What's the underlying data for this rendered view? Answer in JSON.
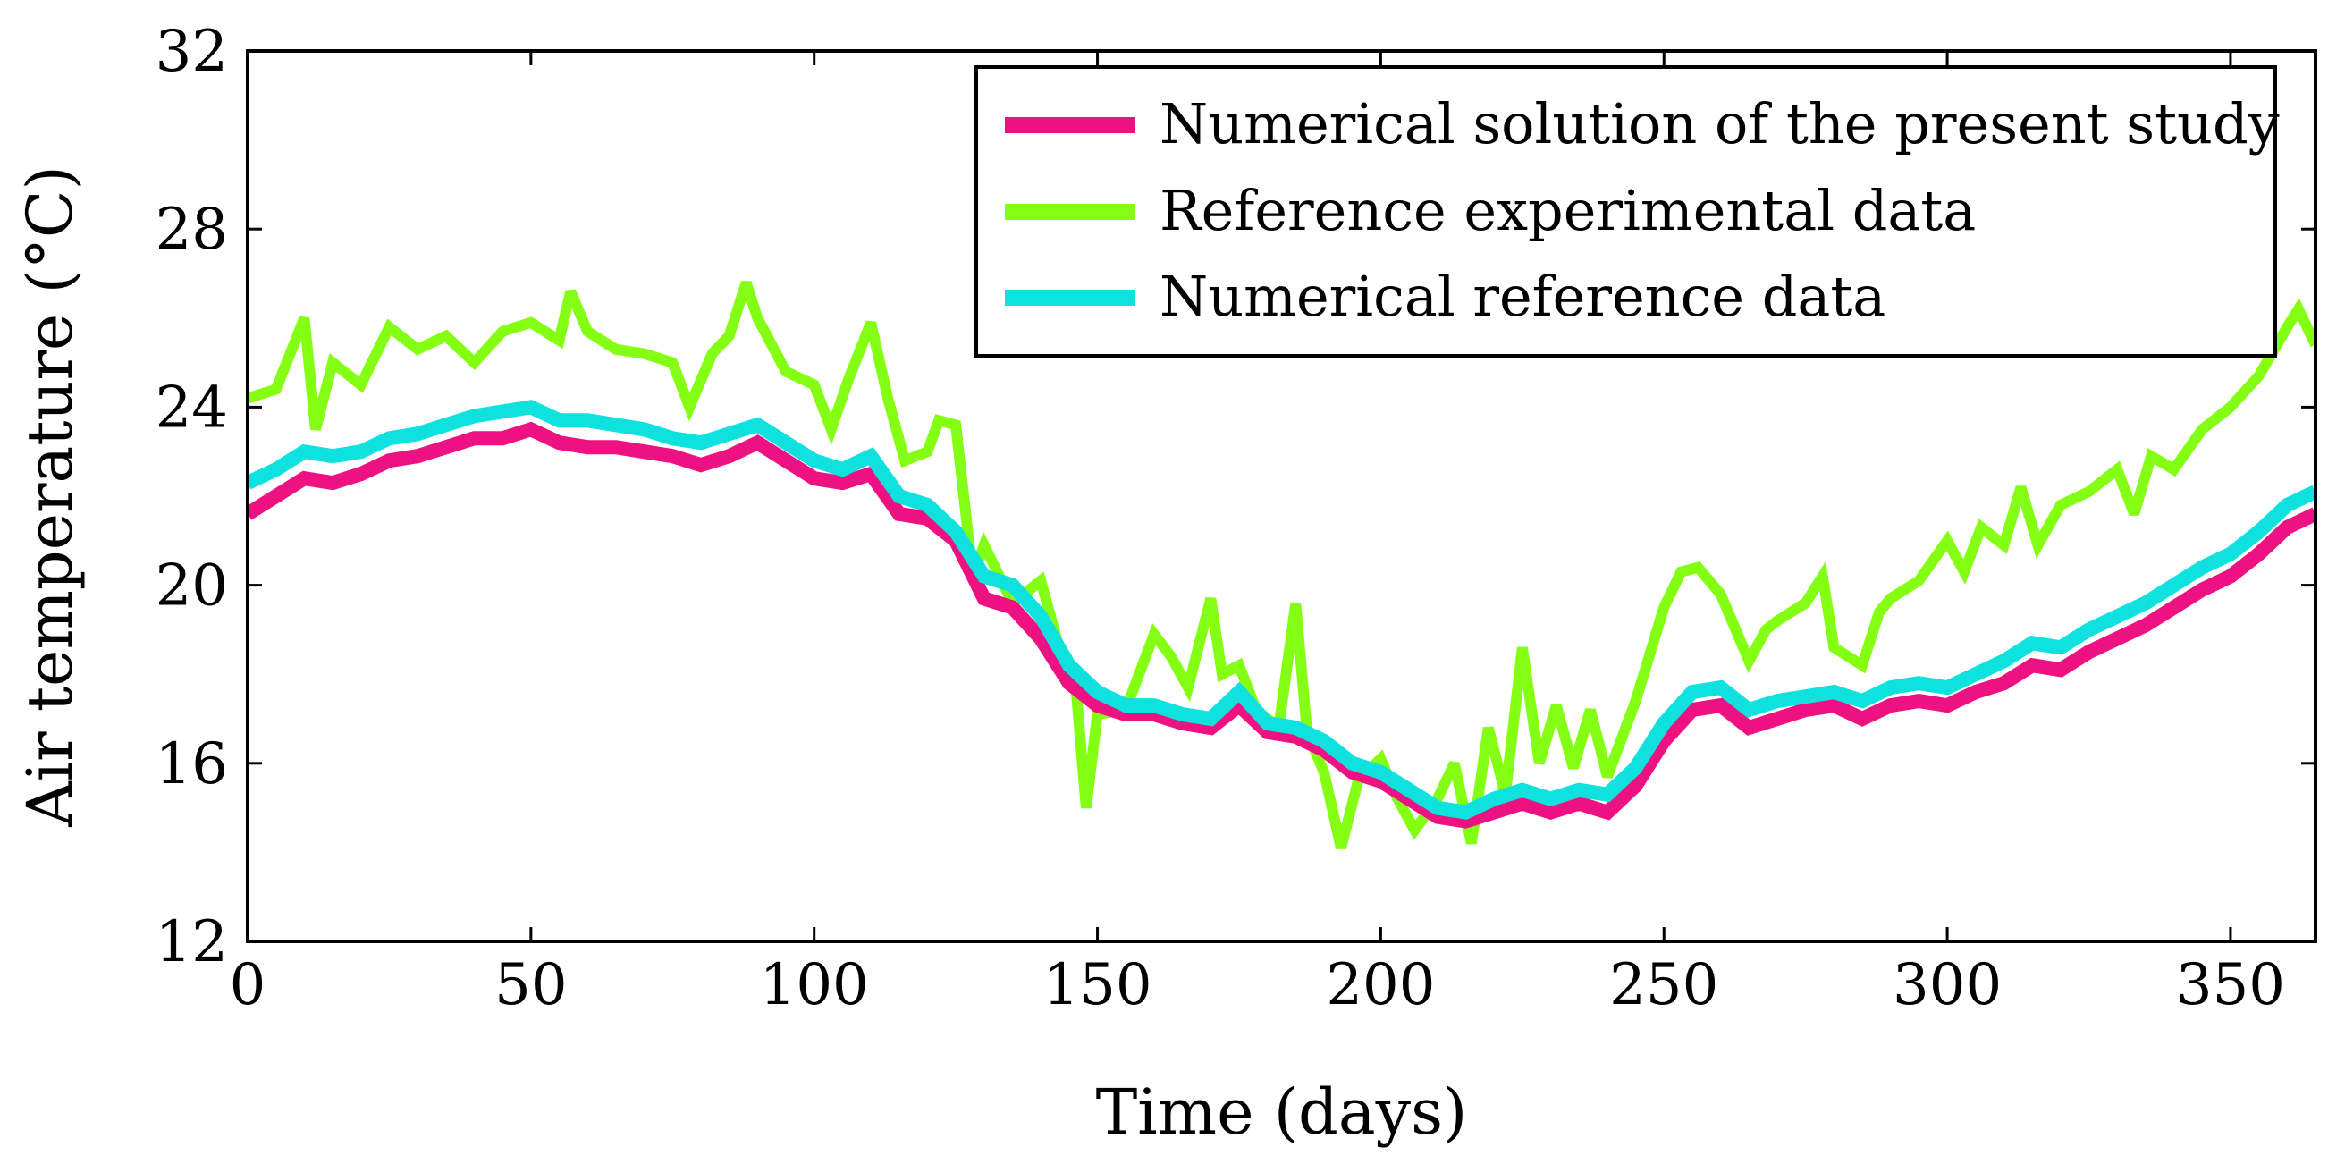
{
  "chart_data": {
    "type": "line",
    "title": "",
    "xlabel": "Time (days)",
    "ylabel": "Air temperature (°C)",
    "xlim": [
      0,
      365
    ],
    "ylim": [
      12,
      32
    ],
    "xticks": [
      0,
      50,
      100,
      150,
      200,
      250,
      300,
      350
    ],
    "yticks": [
      12,
      16,
      20,
      24,
      28,
      32
    ],
    "xtick_labels": [
      "0",
      "50",
      "100",
      "150",
      "200",
      "250",
      "300",
      "350"
    ],
    "ytick_labels": [
      "12",
      "16",
      "20",
      "24",
      "28",
      "32"
    ],
    "grid": false,
    "legend_position": "top-right",
    "series": [
      {
        "name": "Numerical solution of the present study",
        "color": "#ee1182",
        "x": [
          0,
          5,
          10,
          15,
          20,
          25,
          30,
          35,
          40,
          45,
          50,
          55,
          60,
          65,
          70,
          75,
          80,
          85,
          90,
          95,
          100,
          105,
          110,
          115,
          120,
          125,
          130,
          135,
          140,
          145,
          150,
          155,
          160,
          165,
          170,
          175,
          180,
          185,
          190,
          195,
          200,
          205,
          210,
          215,
          220,
          225,
          230,
          235,
          240,
          245,
          250,
          255,
          260,
          265,
          270,
          275,
          280,
          285,
          290,
          295,
          300,
          305,
          310,
          315,
          320,
          325,
          330,
          335,
          340,
          345,
          350,
          355,
          360,
          365
        ],
        "y": [
          21.6,
          22.0,
          22.4,
          22.3,
          22.5,
          22.8,
          22.9,
          23.1,
          23.3,
          23.3,
          23.5,
          23.2,
          23.1,
          23.1,
          23.0,
          22.9,
          22.7,
          22.9,
          23.2,
          22.8,
          22.4,
          22.3,
          22.5,
          21.6,
          21.5,
          21.0,
          19.7,
          19.5,
          18.8,
          17.8,
          17.3,
          17.1,
          17.1,
          16.9,
          16.8,
          17.3,
          16.7,
          16.6,
          16.3,
          15.8,
          15.6,
          15.2,
          14.8,
          14.7,
          14.9,
          15.1,
          14.9,
          15.1,
          14.9,
          15.5,
          16.5,
          17.2,
          17.3,
          16.8,
          17.0,
          17.2,
          17.3,
          17.0,
          17.3,
          17.4,
          17.3,
          17.6,
          17.8,
          18.2,
          18.1,
          18.5,
          18.8,
          19.1,
          19.5,
          19.9,
          20.2,
          20.7,
          21.3,
          21.6
        ]
      },
      {
        "name": "Reference experimental data",
        "color": "#84ff14",
        "x": [
          0,
          5,
          10,
          12,
          15,
          20,
          25,
          30,
          35,
          40,
          45,
          50,
          55,
          57,
          60,
          65,
          70,
          75,
          78,
          82,
          85,
          88,
          90,
          95,
          100,
          103,
          106,
          110,
          113,
          116,
          120,
          122,
          125,
          128,
          130,
          135,
          140,
          143,
          146,
          148,
          150,
          155,
          160,
          163,
          166,
          170,
          172,
          175,
          178,
          182,
          185,
          187,
          190,
          193,
          196,
          200,
          203,
          206,
          210,
          213,
          216,
          219,
          222,
          225,
          228,
          231,
          234,
          237,
          240,
          245,
          250,
          253,
          256,
          260,
          265,
          268,
          270,
          275,
          278,
          280,
          285,
          288,
          290,
          295,
          300,
          303,
          306,
          310,
          313,
          316,
          320,
          325,
          330,
          333,
          336,
          340,
          345,
          350,
          355,
          360,
          362,
          365
        ],
        "y": [
          24.2,
          24.4,
          26.0,
          23.5,
          25.0,
          24.5,
          25.8,
          25.3,
          25.6,
          25.0,
          25.7,
          25.9,
          25.5,
          26.6,
          25.7,
          25.3,
          25.2,
          25.0,
          24.0,
          25.2,
          25.6,
          26.8,
          26.0,
          24.8,
          24.5,
          23.5,
          24.6,
          25.9,
          24.2,
          22.8,
          23.0,
          23.7,
          23.6,
          20.2,
          20.9,
          19.6,
          20.1,
          18.7,
          18.0,
          15.0,
          17.1,
          17.2,
          18.9,
          18.4,
          17.7,
          19.7,
          18.0,
          18.2,
          17.2,
          16.8,
          19.6,
          16.7,
          15.8,
          14.1,
          15.6,
          16.1,
          15.2,
          14.5,
          15.2,
          16.0,
          14.2,
          16.8,
          15.3,
          18.6,
          16.0,
          17.3,
          15.9,
          17.2,
          15.7,
          17.4,
          19.5,
          20.3,
          20.4,
          19.8,
          18.3,
          19.0,
          19.2,
          19.6,
          20.2,
          18.6,
          18.2,
          19.4,
          19.7,
          20.1,
          21.0,
          20.3,
          21.3,
          20.9,
          22.2,
          20.9,
          21.8,
          22.1,
          22.6,
          21.6,
          22.9,
          22.6,
          23.5,
          24.0,
          24.7,
          25.8,
          26.2,
          25.4
        ]
      },
      {
        "name": "Numerical reference data",
        "color": "#0fe2de",
        "x": [
          0,
          5,
          10,
          15,
          20,
          25,
          30,
          35,
          40,
          45,
          50,
          55,
          60,
          65,
          70,
          75,
          80,
          85,
          90,
          95,
          100,
          105,
          110,
          115,
          120,
          125,
          130,
          135,
          140,
          145,
          150,
          155,
          160,
          165,
          170,
          175,
          180,
          185,
          190,
          195,
          200,
          205,
          210,
          215,
          220,
          225,
          230,
          235,
          240,
          245,
          250,
          255,
          260,
          265,
          270,
          275,
          280,
          285,
          290,
          295,
          300,
          305,
          310,
          315,
          320,
          325,
          330,
          335,
          340,
          345,
          350,
          355,
          360,
          365
        ],
        "y": [
          22.3,
          22.6,
          23.0,
          22.9,
          23.0,
          23.3,
          23.4,
          23.6,
          23.8,
          23.9,
          24.0,
          23.7,
          23.7,
          23.6,
          23.5,
          23.3,
          23.2,
          23.4,
          23.6,
          23.2,
          22.8,
          22.6,
          22.9,
          22.0,
          21.8,
          21.2,
          20.2,
          20.0,
          19.3,
          18.2,
          17.6,
          17.3,
          17.3,
          17.1,
          17.0,
          17.6,
          16.9,
          16.8,
          16.5,
          16.0,
          15.8,
          15.4,
          15.0,
          14.9,
          15.2,
          15.4,
          15.2,
          15.4,
          15.3,
          15.9,
          16.9,
          17.6,
          17.7,
          17.2,
          17.4,
          17.5,
          17.6,
          17.4,
          17.7,
          17.8,
          17.7,
          18.0,
          18.3,
          18.7,
          18.6,
          19.0,
          19.3,
          19.6,
          20.0,
          20.4,
          20.7,
          21.2,
          21.8,
          22.1
        ]
      }
    ]
  }
}
